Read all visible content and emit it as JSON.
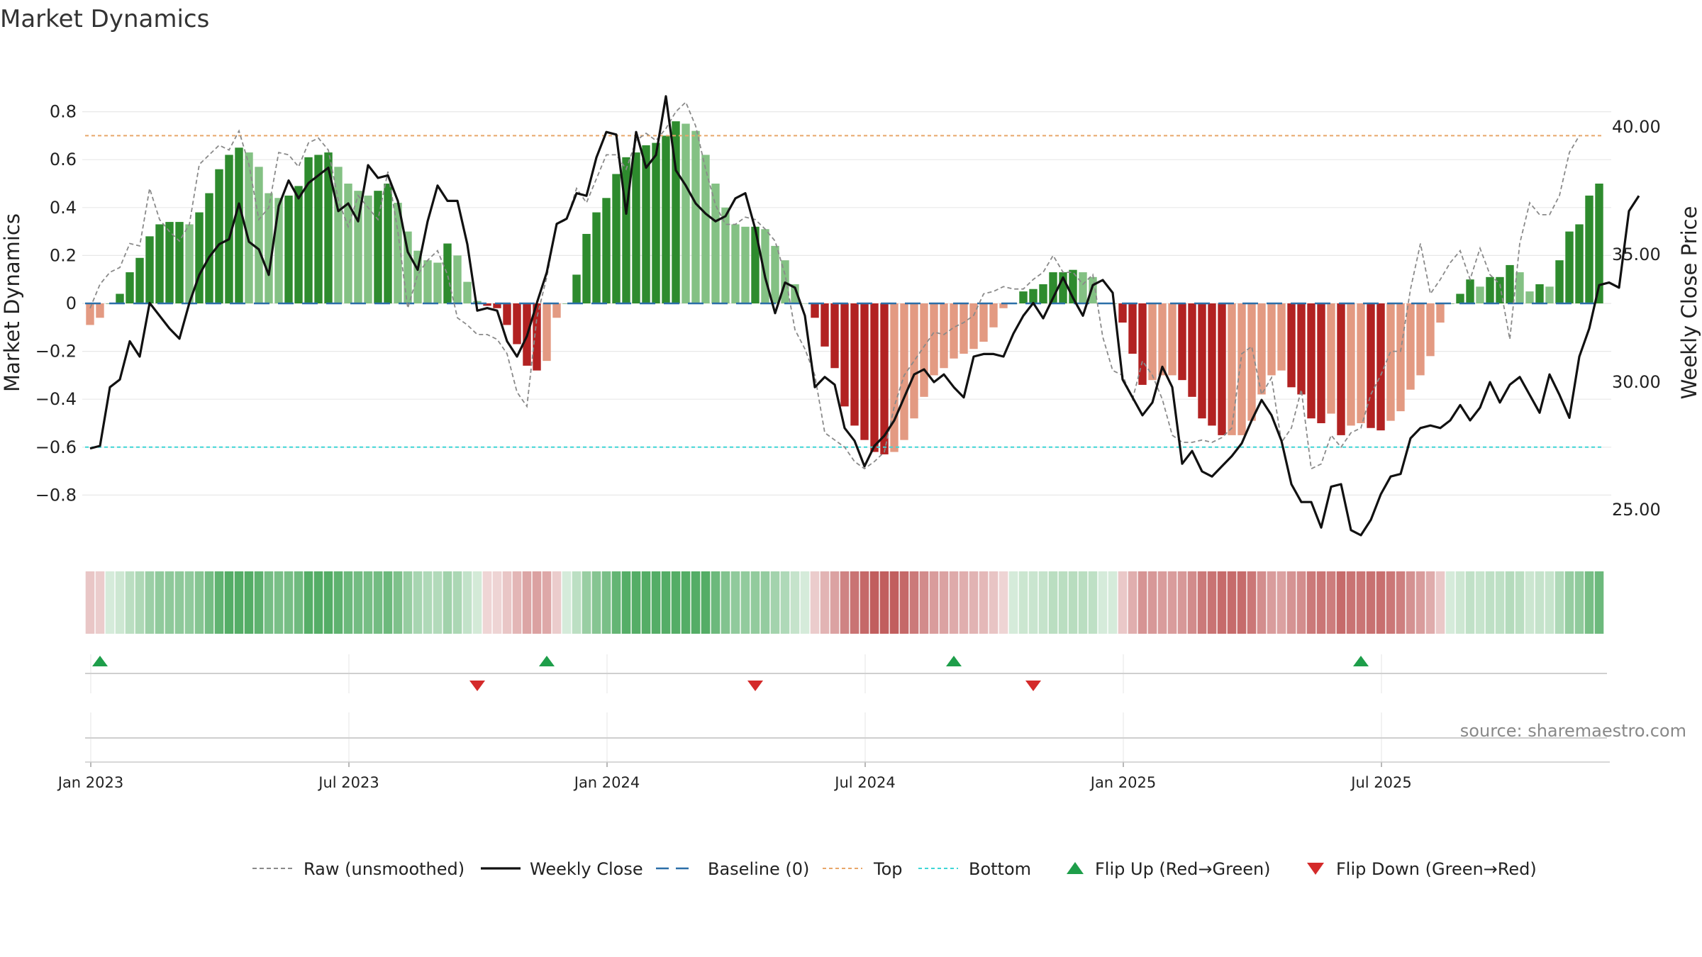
{
  "chart_data": {
    "type": "bar",
    "title": "Market Dynamics",
    "ylabel_left": "Market Dynamics",
    "ylabel_right": "Weekly Close Price",
    "ylim_left": [
      -0.8,
      0.8
    ],
    "ylim_right": [
      22,
      42
    ],
    "left_ticks": [
      {
        "v": 0.8,
        "label": "0.8"
      },
      {
        "v": 0.6,
        "label": "0.6"
      },
      {
        "v": 0.4,
        "label": "0.4"
      },
      {
        "v": 0.2,
        "label": "0.2"
      },
      {
        "v": 0,
        "label": "0"
      },
      {
        "v": -0.2,
        "label": "−0.2"
      },
      {
        "v": -0.4,
        "label": "−0.4"
      },
      {
        "v": -0.6,
        "label": "−0.6"
      },
      {
        "v": -0.8,
        "label": "−0.8"
      }
    ],
    "right_ticks": [
      {
        "v": 40,
        "label": "40.00"
      },
      {
        "v": 35,
        "label": "35.00"
      },
      {
        "v": 30,
        "label": "30.00"
      },
      {
        "v": 25,
        "label": "25.00"
      }
    ],
    "x_ticks": [
      {
        "week": 1,
        "label": "Jan 2023"
      },
      {
        "week": 27,
        "label": "Jul 2023"
      },
      {
        "week": 53,
        "label": "Jan 2024"
      },
      {
        "week": 79,
        "label": "Jul 2024"
      },
      {
        "week": 105,
        "label": "Jan 2025"
      },
      {
        "week": 131,
        "label": "Jul 2025"
      }
    ],
    "x_start": "2022-12-26",
    "x_unit": "week",
    "top_level": 0.7,
    "bottom_level": -0.6,
    "baseline": 0,
    "market_dynamics": [
      -0.09,
      -0.06,
      0,
      0.04,
      0.13,
      0.19,
      0.28,
      0.33,
      0.34,
      0.34,
      0.33,
      0.38,
      0.46,
      0.56,
      0.62,
      0.65,
      0.63,
      0.57,
      0.46,
      0.44,
      0.45,
      0.49,
      0.61,
      0.62,
      0.63,
      0.57,
      0.5,
      0.47,
      0.45,
      0.47,
      0.5,
      0.42,
      0.3,
      0.22,
      0.18,
      0.17,
      0.25,
      0.2,
      0.09,
      0.01,
      -0.01,
      -0.02,
      -0.09,
      -0.17,
      -0.26,
      -0.28,
      -0.24,
      -0.06,
      0,
      0.12,
      0.29,
      0.38,
      0.44,
      0.54,
      0.61,
      0.63,
      0.66,
      0.67,
      0.7,
      0.76,
      0.75,
      0.72,
      0.62,
      0.5,
      0.4,
      0.33,
      0.32,
      0.32,
      0.31,
      0.24,
      0.18,
      0.08,
      0,
      -0.06,
      -0.18,
      -0.27,
      -0.43,
      -0.51,
      -0.57,
      -0.62,
      -0.63,
      -0.62,
      -0.57,
      -0.48,
      -0.39,
      -0.3,
      -0.27,
      -0.23,
      -0.21,
      -0.19,
      -0.16,
      -0.1,
      -0.02,
      0,
      0.05,
      0.06,
      0.08,
      0.13,
      0.13,
      0.14,
      0.13,
      0.11,
      0,
      0,
      -0.08,
      -0.21,
      -0.34,
      -0.32,
      -0.3,
      -0.3,
      -0.32,
      -0.39,
      -0.48,
      -0.51,
      -0.55,
      -0.55,
      -0.55,
      -0.49,
      -0.38,
      -0.3,
      -0.28,
      -0.35,
      -0.38,
      -0.48,
      -0.5,
      -0.46,
      -0.55,
      -0.51,
      -0.5,
      -0.52,
      -0.53,
      -0.49,
      -0.45,
      -0.36,
      -0.3,
      -0.22,
      -0.08,
      0,
      0.04,
      0.1,
      0.07,
      0.11,
      0.11,
      0.16,
      0.13,
      0.05,
      0.08,
      0.07,
      0.18,
      0.3,
      0.33,
      0.45,
      0.5
    ],
    "raw_unsmoothed": [
      -0.02,
      0.08,
      0.13,
      0.15,
      0.25,
      0.24,
      0.48,
      0.35,
      0.3,
      0.26,
      0.33,
      0.58,
      0.62,
      0.66,
      0.64,
      0.72,
      0.58,
      0.35,
      0.4,
      0.63,
      0.62,
      0.57,
      0.67,
      0.69,
      0.64,
      0.43,
      0.32,
      0.45,
      0.4,
      0.35,
      0.55,
      0.3,
      -0.02,
      0.12,
      0.18,
      0.22,
      0.12,
      -0.06,
      -0.09,
      -0.13,
      -0.13,
      -0.15,
      -0.21,
      -0.37,
      -0.43,
      -0.06,
      0.11,
      0.33,
      0.35,
      0.48,
      0.42,
      0.52,
      0.62,
      0.62,
      0.56,
      0.68,
      0.71,
      0.68,
      0.73,
      0.8,
      0.84,
      0.74,
      0.56,
      0.41,
      0.33,
      0.33,
      0.36,
      0.35,
      0.31,
      0.26,
      0.12,
      -0.11,
      -0.19,
      -0.3,
      -0.54,
      -0.57,
      -0.6,
      -0.66,
      -0.69,
      -0.66,
      -0.62,
      -0.43,
      -0.3,
      -0.24,
      -0.18,
      -0.12,
      -0.13,
      -0.1,
      -0.08,
      -0.05,
      0.04,
      0.05,
      0.07,
      0.06,
      0.06,
      0.1,
      0.13,
      0.2,
      0.13,
      0.13,
      0.08,
      0.12,
      -0.14,
      -0.28,
      -0.3,
      -0.4,
      -0.24,
      -0.3,
      -0.4,
      -0.55,
      -0.58,
      -0.58,
      -0.57,
      -0.58,
      -0.56,
      -0.52,
      -0.21,
      -0.18,
      -0.38,
      -0.31,
      -0.58,
      -0.52,
      -0.36,
      -0.69,
      -0.67,
      -0.55,
      -0.6,
      -0.54,
      -0.52,
      -0.38,
      -0.3,
      -0.2,
      -0.2,
      0.06,
      0.25,
      0.04,
      0.1,
      0.17,
      0.22,
      0.1,
      0.23,
      0.12,
      0.08,
      -0.15,
      0.25,
      0.42,
      0.37,
      0.37,
      0.45,
      0.63,
      0.7
    ],
    "weekly_close": [
      27.4,
      27.5,
      29.8,
      30.1,
      31.6,
      31.0,
      33.1,
      32.6,
      32.1,
      31.7,
      33.1,
      34.2,
      34.9,
      35.4,
      35.6,
      37.0,
      35.5,
      35.2,
      34.2,
      36.9,
      37.9,
      37.2,
      37.8,
      38.1,
      38.4,
      36.7,
      37.0,
      36.3,
      38.5,
      38.0,
      38.1,
      37.1,
      35.1,
      34.4,
      36.3,
      37.7,
      37.1,
      37.1,
      35.4,
      32.8,
      32.9,
      32.8,
      31.6,
      31.0,
      31.8,
      33.1,
      34.3,
      36.2,
      36.4,
      37.4,
      37.3,
      38.8,
      39.8,
      39.7,
      36.6,
      39.8,
      38.4,
      38.9,
      41.2,
      38.3,
      37.7,
      37.0,
      36.6,
      36.3,
      36.5,
      37.2,
      37.4,
      36.0,
      34.1,
      32.7,
      33.9,
      33.7,
      32.6,
      29.8,
      30.2,
      29.9,
      28.2,
      27.7,
      26.7,
      27.5,
      27.9,
      28.5,
      29.4,
      30.3,
      30.5,
      30.0,
      30.3,
      29.8,
      29.4,
      31.0,
      31.1,
      31.1,
      31.0,
      31.9,
      32.6,
      33.1,
      32.5,
      33.3,
      34.1,
      33.3,
      32.6,
      33.8,
      34.0,
      33.5,
      30.1,
      29.4,
      28.7,
      29.2,
      30.6,
      29.8,
      26.8,
      27.3,
      26.5,
      26.3,
      26.7,
      27.1,
      27.6,
      28.5,
      29.3,
      28.7,
      27.7,
      26.0,
      25.3,
      25.3,
      24.3,
      25.9,
      26.0,
      24.2,
      24.0,
      24.6,
      25.6,
      26.3,
      26.4,
      27.8,
      28.2,
      28.3,
      28.2,
      28.5,
      29.1,
      28.5,
      29.0,
      30.0,
      29.2,
      29.9,
      30.2,
      29.5,
      28.8,
      30.3,
      29.5,
      28.6,
      31.0,
      32.1,
      33.8,
      33.9,
      33.7,
      36.7,
      37.3
    ]
  },
  "band_colors": {
    "green_dark": "#2e8b2e",
    "green_light": "#84c184",
    "red_dark": "#b22222",
    "red_light": "#e39a82",
    "flip_up": "#1e9e4a",
    "flip_down": "#d42a2a",
    "top_line": "#e8a76a",
    "bottom_line": "#3fd6d6",
    "baseline": "#2b6fa8"
  },
  "flip_up_weeks": [
    2,
    47,
    88,
    129
  ],
  "flip_down_weeks": [
    40,
    68,
    96
  ],
  "source": "source: sharemaestro.com",
  "legend": [
    {
      "key": "raw",
      "label": "Raw (unsmoothed)"
    },
    {
      "key": "close",
      "label": "Weekly Close"
    },
    {
      "key": "baseline",
      "label": "Baseline (0)"
    },
    {
      "key": "top",
      "label": "Top"
    },
    {
      "key": "bottom",
      "label": "Bottom"
    },
    {
      "key": "flipup",
      "label": "Flip Up (Red→Green)"
    },
    {
      "key": "flipdown",
      "label": "Flip Down (Green→Red)"
    }
  ]
}
